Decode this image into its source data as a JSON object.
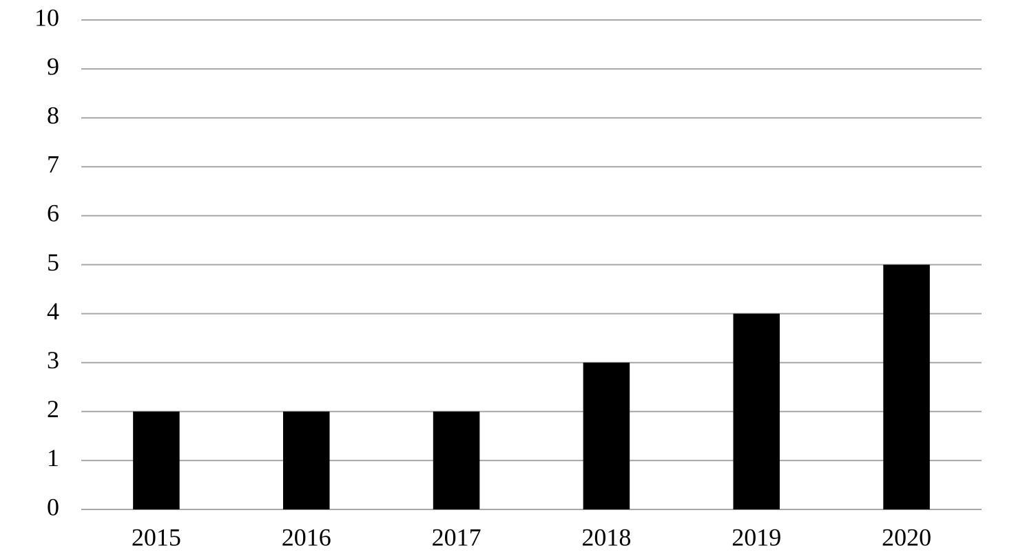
{
  "chart_data": {
    "type": "bar",
    "categories": [
      "2015",
      "2016",
      "2017",
      "2018",
      "2019",
      "2020"
    ],
    "values": [
      2,
      2,
      2,
      3,
      4,
      5
    ],
    "color": "#000000",
    "ylim": [
      0,
      10
    ],
    "yticks": [
      0,
      1,
      2,
      3,
      4,
      5,
      6,
      7,
      8,
      9,
      10
    ],
    "grid": true
  }
}
